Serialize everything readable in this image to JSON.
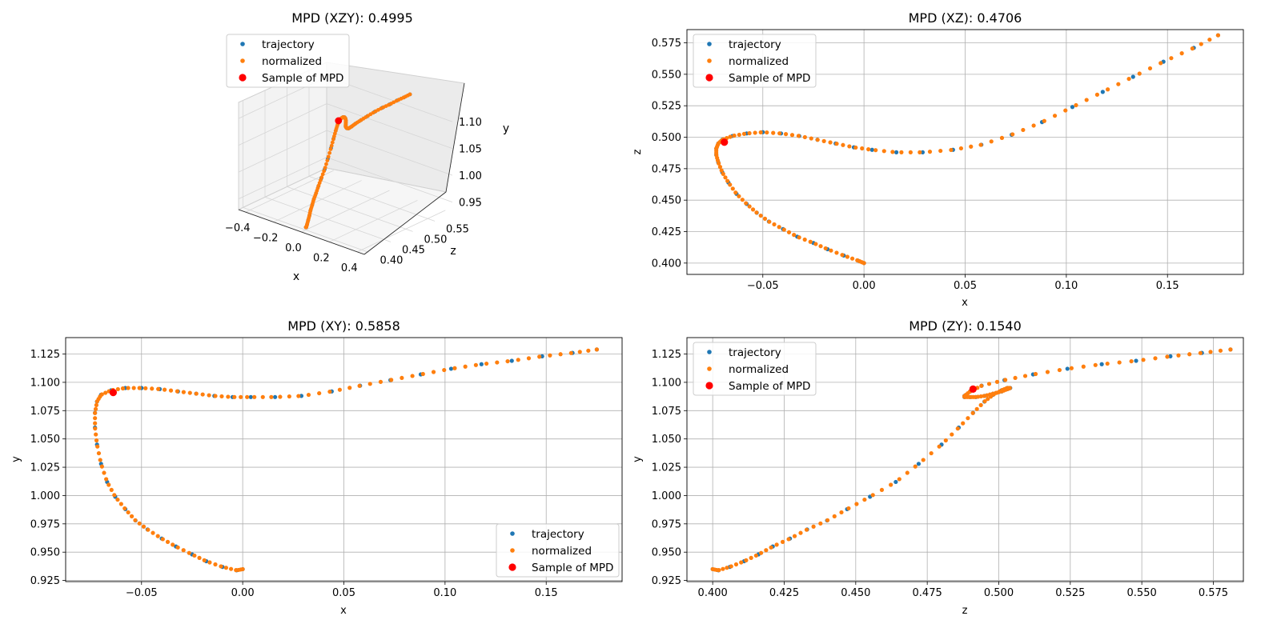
{
  "colors": {
    "trajectory": "#1f77b4",
    "normalized": "#ff7f0e",
    "sample": "#ff0000",
    "grid": "#b0b0b0"
  },
  "legend_labels": [
    "trajectory",
    "normalized",
    "Sample of MPD"
  ],
  "chart_data": [
    {
      "type": "scatter",
      "projection": "3d",
      "title": "MPD (XZY): 0.4995",
      "xlabel": "x",
      "ylabel": "z",
      "zlabel": "y",
      "xlim": [
        -0.45,
        0.45
      ],
      "ylim": [
        0.39,
        0.59
      ],
      "zlim": [
        0.93,
        1.13
      ],
      "x_ticks": [
        -0.4,
        -0.2,
        0.0,
        0.2,
        0.4
      ],
      "x_tick_labels": [
        "−0.4",
        "−0.2",
        "0.0",
        "0.2",
        "0.4"
      ],
      "y_ticks": [
        0.4,
        0.45,
        0.5,
        0.55
      ],
      "y_tick_labels": [
        "0.40",
        "0.45",
        "0.50",
        "0.55"
      ],
      "z_ticks": [
        0.95,
        1.0,
        1.05,
        1.1
      ],
      "z_tick_labels": [
        "0.95",
        "1.00",
        "1.05",
        "1.10"
      ],
      "legend": "upper-left",
      "sample": {
        "x": -0.069,
        "z": 0.496,
        "y": 1.09
      }
    },
    {
      "type": "scatter",
      "title": "MPD (XZ): 0.4706",
      "xlabel": "x",
      "ylabel": "z",
      "xlim": [
        -0.0875,
        0.1875
      ],
      "ylim": [
        0.391,
        0.5855
      ],
      "x_ticks": [
        -0.05,
        0.0,
        0.05,
        0.1,
        0.15
      ],
      "x_tick_labels": [
        "−0.05",
        "0.00",
        "0.05",
        "0.10",
        "0.15"
      ],
      "y_ticks": [
        0.4,
        0.425,
        0.45,
        0.475,
        0.5,
        0.525,
        0.55,
        0.575
      ],
      "y_tick_labels": [
        "0.400",
        "0.425",
        "0.450",
        "0.475",
        "0.500",
        "0.525",
        "0.550",
        "0.575"
      ],
      "grid": true,
      "legend": "upper-left",
      "sample": {
        "x": -0.069,
        "y": 0.496
      }
    },
    {
      "type": "scatter",
      "title": "MPD (XY): 0.5858",
      "xlabel": "x",
      "ylabel": "y",
      "xlim": [
        -0.0875,
        0.1875
      ],
      "ylim": [
        0.924,
        1.1395
      ],
      "x_ticks": [
        -0.05,
        0.0,
        0.05,
        0.1,
        0.15
      ],
      "x_tick_labels": [
        "−0.05",
        "0.00",
        "0.05",
        "0.10",
        "0.15"
      ],
      "y_ticks": [
        0.925,
        0.95,
        0.975,
        1.0,
        1.025,
        1.05,
        1.075,
        1.1,
        1.125
      ],
      "y_tick_labels": [
        "0.925",
        "0.950",
        "0.975",
        "1.000",
        "1.025",
        "1.050",
        "1.075",
        "1.100",
        "1.125"
      ],
      "grid": true,
      "legend": "lower-right",
      "sample": {
        "x": -0.064,
        "y": 1.091
      }
    },
    {
      "type": "scatter",
      "title": "MPD (ZY): 0.1540",
      "xlabel": "z",
      "ylabel": "y",
      "xlim": [
        0.391,
        0.5855
      ],
      "ylim": [
        0.924,
        1.1395
      ],
      "x_ticks": [
        0.4,
        0.425,
        0.45,
        0.475,
        0.5,
        0.525,
        0.55,
        0.575
      ],
      "x_tick_labels": [
        "0.400",
        "0.425",
        "0.450",
        "0.475",
        "0.500",
        "0.525",
        "0.550",
        "0.575"
      ],
      "y_ticks": [
        0.925,
        0.95,
        0.975,
        1.0,
        1.025,
        1.05,
        1.075,
        1.1,
        1.125
      ],
      "y_tick_labels": [
        "0.925",
        "0.950",
        "0.975",
        "1.000",
        "1.025",
        "1.050",
        "1.075",
        "1.100",
        "1.125"
      ],
      "grid": true,
      "legend": "upper-left",
      "sample": {
        "x": 0.491,
        "y": 1.094
      }
    }
  ],
  "trajectory": {
    "x": [
      0.0,
      -0.003,
      -0.01,
      -0.018,
      -0.025,
      -0.033,
      -0.04,
      -0.047,
      -0.053,
      -0.058,
      -0.063,
      -0.067,
      -0.07,
      -0.072,
      -0.073,
      -0.073,
      -0.072,
      -0.07,
      -0.065,
      -0.058,
      -0.05,
      -0.041,
      -0.032,
      -0.023,
      -0.014,
      -0.005,
      0.004,
      0.016,
      0.029,
      0.044,
      0.058,
      0.073,
      0.088,
      0.103,
      0.118,
      0.133,
      0.148,
      0.163,
      0.175
    ],
    "z": [
      0.4,
      0.402,
      0.406,
      0.411,
      0.416,
      0.421,
      0.427,
      0.433,
      0.44,
      0.447,
      0.455,
      0.464,
      0.472,
      0.48,
      0.486,
      0.491,
      0.495,
      0.498,
      0.501,
      0.503,
      0.504,
      0.503,
      0.501,
      0.498,
      0.495,
      0.492,
      0.49,
      0.488,
      0.488,
      0.49,
      0.494,
      0.502,
      0.512,
      0.524,
      0.536,
      0.548,
      0.56,
      0.571,
      0.581
    ],
    "y": [
      0.935,
      0.934,
      0.937,
      0.942,
      0.948,
      0.955,
      0.962,
      0.97,
      0.978,
      0.988,
      0.999,
      1.012,
      1.028,
      1.045,
      1.06,
      1.073,
      1.083,
      1.089,
      1.093,
      1.095,
      1.095,
      1.094,
      1.092,
      1.09,
      1.088,
      1.087,
      1.087,
      1.087,
      1.088,
      1.092,
      1.097,
      1.102,
      1.107,
      1.112,
      1.116,
      1.119,
      1.123,
      1.126,
      1.129
    ]
  }
}
